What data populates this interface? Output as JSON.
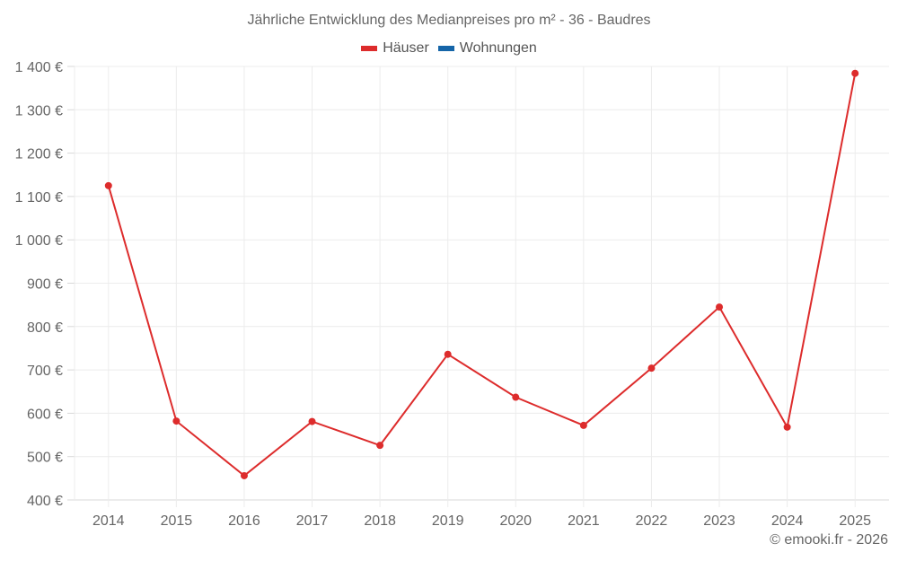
{
  "chart": {
    "title": "Jährliche Entwicklung des Medianpreises pro m² - 36 - Baudres",
    "credit": "© emooki.fr - 2026",
    "legend": [
      {
        "label": "Häuser",
        "color": "#dd2c2c"
      },
      {
        "label": "Wohnungen",
        "color": "#1565a8"
      }
    ]
  },
  "chart_data": {
    "type": "line",
    "title": "Jährliche Entwicklung des Medianpreises pro m² - 36 - Baudres",
    "xlabel": "",
    "ylabel": "",
    "categories": [
      "2014",
      "2015",
      "2016",
      "2017",
      "2018",
      "2019",
      "2020",
      "2021",
      "2022",
      "2023",
      "2024",
      "2025"
    ],
    "series": [
      {
        "name": "Häuser",
        "color": "#dd2c2c",
        "values": [
          1125,
          582,
          456,
          581,
          526,
          736,
          637,
          572,
          704,
          845,
          568,
          1384
        ]
      },
      {
        "name": "Wohnungen",
        "color": "#1565a8",
        "values": []
      }
    ],
    "ylim": [
      400,
      1400
    ],
    "yticks": [
      400,
      500,
      600,
      700,
      800,
      900,
      1000,
      1100,
      1200,
      1300,
      1400
    ],
    "ytick_labels": [
      "400 €",
      "500 €",
      "600 €",
      "700 €",
      "800 €",
      "900 €",
      "1 000 €",
      "1 100 €",
      "1 200 €",
      "1 300 €",
      "1 400 €"
    ],
    "grid": true,
    "legend_position": "top"
  }
}
